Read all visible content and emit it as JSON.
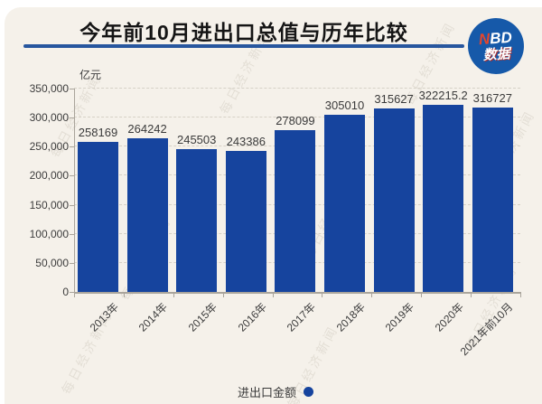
{
  "header": {
    "title": "今年前10月进出口总值与历年比较",
    "logo": {
      "prefix_red": "N",
      "suffix_white": "BD",
      "line2": "数据"
    }
  },
  "watermark": {
    "text": "每日经济新闻"
  },
  "colors": {
    "bar_blue": "#16449e",
    "rule_blue": "#27569e",
    "logo_circle_blue": "#1659a9",
    "logo_n_red": "#e2462e",
    "background_beige": "#f5f1ea"
  },
  "chart_data": {
    "type": "bar",
    "title": "今年前10月进出口总值与历年比较",
    "xlabel": "",
    "ylabel": "亿元",
    "categories": [
      "2013年",
      "2014年",
      "2015年",
      "2016年",
      "2017年",
      "2018年",
      "2019年",
      "2020年",
      "2021年前10月"
    ],
    "values": [
      258169,
      264242,
      245503,
      243386,
      278099,
      305010,
      315627,
      322215.2,
      316727
    ],
    "value_labels": [
      "258169",
      "264242",
      "245503",
      "243386",
      "278099",
      "305010",
      "315627",
      "322215.2",
      "316727"
    ],
    "ylim": [
      0,
      350000
    ],
    "ytick_interval": 50000,
    "ytick_labels": [
      "0",
      "50,000",
      "100,000",
      "150,000",
      "200,000",
      "250,000",
      "300,000",
      "350,000"
    ],
    "grid": "horizontal-dashed",
    "legend": [
      {
        "name": "进出口金额"
      }
    ],
    "legend_position": "bottom-center"
  }
}
